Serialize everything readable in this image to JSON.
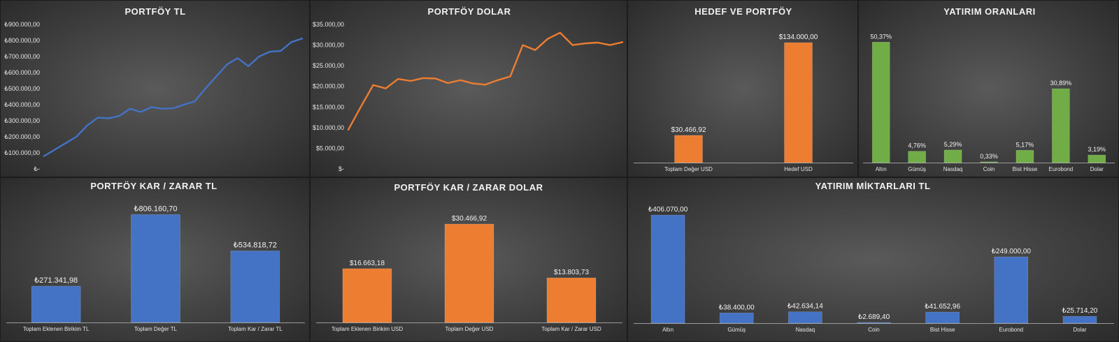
{
  "colors": {
    "blue": "#4472c4",
    "orange": "#ed7d31",
    "green": "#70ad47"
  },
  "chart_data": [
    {
      "id": "portfoy-tl",
      "type": "line",
      "title": "PORTFÖY TL",
      "xlabel": "",
      "ylabel": "",
      "ylim": [
        0,
        900000
      ],
      "yticks": [
        0,
        100000,
        200000,
        300000,
        400000,
        500000,
        600000,
        700000,
        800000,
        900000
      ],
      "yticklabels": [
        "₺-",
        "₺100.000,00",
        "₺200.000,00",
        "₺300.000,00",
        "₺400.000,00",
        "₺500.000,00",
        "₺600.000,00",
        "₺700.000,00",
        "₺800.000,00",
        "₺900.000,00"
      ],
      "color": "blue",
      "values": [
        80000,
        120000,
        160000,
        200000,
        270000,
        320000,
        315000,
        330000,
        375000,
        355000,
        385000,
        375000,
        378000,
        400000,
        420000,
        500000,
        575000,
        650000,
        690000,
        640000,
        700000,
        730000,
        735000,
        790000,
        812000
      ]
    },
    {
      "id": "portfoy-dolar",
      "type": "line",
      "title": "PORTFÖY DOLAR",
      "xlabel": "",
      "ylabel": "",
      "ylim": [
        0,
        35000
      ],
      "yticks": [
        0,
        5000,
        10000,
        15000,
        20000,
        25000,
        30000,
        35000
      ],
      "yticklabels": [
        "$-",
        "$5.000,00",
        "$10.000,00",
        "$15.000,00",
        "$20.000,00",
        "$25.000,00",
        "$30.000,00",
        "$35.000,00"
      ],
      "color": "orange",
      "values": [
        9500,
        15000,
        20300,
        19500,
        21800,
        21300,
        22000,
        21900,
        20800,
        21500,
        20700,
        20400,
        21500,
        22400,
        30000,
        28800,
        31500,
        33000,
        30000,
        30400,
        30600,
        30000,
        30700
      ]
    },
    {
      "id": "hedef-ve-portfoy",
      "type": "bar",
      "title": "HEDEF VE PORTFÖY",
      "xlabel": "",
      "ylabel": "",
      "ylim": [
        0,
        145000
      ],
      "color": "orange",
      "categories": [
        "Toplam Değer USD",
        "Hedef USD"
      ],
      "values": [
        30466.92,
        134000
      ],
      "labels": [
        "$30.466,92",
        "$134.000,00"
      ]
    },
    {
      "id": "yatirim-oranlari",
      "type": "bar",
      "title": "YATIRIM ORANLARI",
      "xlabel": "",
      "ylabel": "",
      "ylim": [
        0,
        56
      ],
      "color": "green",
      "categories": [
        "Altın",
        "Gümüş",
        "Nasdaq",
        "Coin",
        "Bist Hisse",
        "Eurobond",
        "Dolar"
      ],
      "values": [
        50.37,
        4.76,
        5.29,
        0.33,
        5.17,
        30.89,
        3.19
      ],
      "labels": [
        "50,37%",
        "4,76%",
        "5,29%",
        "0,33%",
        "5,17%",
        "30,89%",
        "3,19%"
      ]
    },
    {
      "id": "portfoy-kar-zarar-tl",
      "type": "bar",
      "title": "PORTFÖY KAR / ZARAR TL",
      "xlabel": "",
      "ylabel": "",
      "ylim": [
        0,
        850000
      ],
      "color": "blue",
      "categories": [
        "Toplam Eklenen Birikim TL",
        "Toplam Değer TL",
        "Toplam Kar / Zarar TL"
      ],
      "values": [
        271341.98,
        806160.7,
        534818.72
      ],
      "labels": [
        "₺271.341,98",
        "₺806.160,70",
        "₺534.818,72"
      ]
    },
    {
      "id": "portfoy-kar-zarar-dolar",
      "type": "bar",
      "title": "PORTFÖY KAR / ZARAR DOLAR",
      "xlabel": "",
      "ylabel": "",
      "ylim": [
        0,
        33500
      ],
      "color": "orange",
      "categories": [
        "Toplam Eklenen Birikim USD",
        "Toplam Değer USD",
        "Toplam Kar / Zarar USD"
      ],
      "values": [
        16663.18,
        30466.92,
        13803.73
      ],
      "labels": [
        "$16.663,18",
        "$30.466,92",
        "$13.803,73"
      ]
    },
    {
      "id": "yatirim-miktarlari-tl",
      "type": "bar",
      "title": "YATIRIM MİKTARLARI TL",
      "xlabel": "",
      "ylabel": "",
      "ylim": [
        0,
        430000
      ],
      "color": "blue",
      "categories": [
        "Altın",
        "Gümüş",
        "Nasdaq",
        "Coin",
        "Bist Hisse",
        "Eurobond",
        "Dolar"
      ],
      "values": [
        406070,
        38400,
        42634.14,
        2689.4,
        41652.96,
        249000,
        25714.2
      ],
      "labels": [
        "₺406.070,00",
        "₺38.400,00",
        "₺42.634,14",
        "₺2.689,40",
        "₺41.652,96",
        "₺249.000,00",
        "₺25.714,20"
      ]
    }
  ]
}
